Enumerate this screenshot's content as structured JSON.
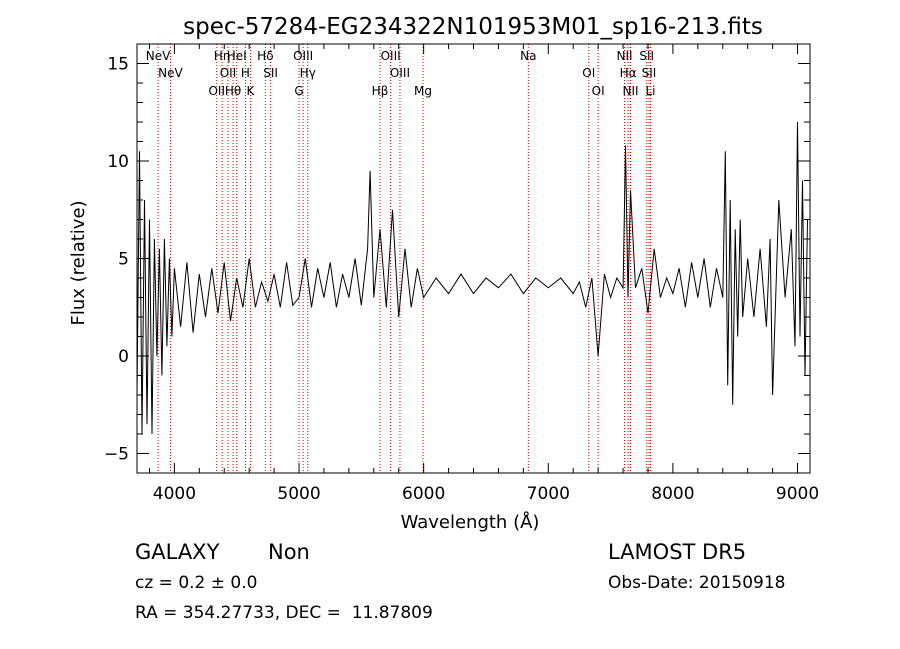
{
  "chart_data": {
    "type": "line",
    "title": "spec-57284-EG234322N101953M01_sp16-213.fits",
    "xlabel": "Wavelength (Å)",
    "ylabel": "Flux (relative)",
    "xlim": [
      3700,
      9100
    ],
    "ylim": [
      -6,
      16
    ],
    "x_ticks": [
      4000,
      5000,
      6000,
      7000,
      8000,
      9000
    ],
    "x_tick_labels": [
      "4000",
      "5000",
      "6000",
      "7000",
      "8000",
      "9000"
    ],
    "y_ticks": [
      -5,
      0,
      5,
      10,
      15
    ],
    "y_tick_labels": [
      "−5",
      "0",
      "5",
      "10",
      "15"
    ],
    "grid": false,
    "line_color": "#000000",
    "marker_color": "#cc0000",
    "series": [
      {
        "x": [
          3700,
          3720,
          3740,
          3760,
          3780,
          3800,
          3820,
          3840,
          3860,
          3880,
          3900,
          3920,
          3940,
          3960,
          3980,
          4000,
          4050,
          4100,
          4150,
          4200,
          4250,
          4300,
          4350,
          4400,
          4450,
          4500,
          4550,
          4600,
          4650,
          4700,
          4750,
          4800,
          4850,
          4900,
          4950,
          5000,
          5050,
          5100,
          5150,
          5200,
          5250,
          5300,
          5350,
          5400,
          5450,
          5500,
          5550,
          5570,
          5600,
          5650,
          5700,
          5750,
          5800,
          5850,
          5900,
          5950,
          6000,
          6100,
          6200,
          6300,
          6400,
          6500,
          6600,
          6700,
          6800,
          6900,
          7000,
          7100,
          7200,
          7250,
          7300,
          7350,
          7400,
          7450,
          7500,
          7550,
          7600,
          7620,
          7640,
          7660,
          7700,
          7750,
          7800,
          7850,
          7900,
          7950,
          8000,
          8050,
          8100,
          8150,
          8200,
          8250,
          8300,
          8350,
          8400,
          8420,
          8440,
          8460,
          8480,
          8500,
          8520,
          8540,
          8560,
          8600,
          8650,
          8700,
          8750,
          8780,
          8800,
          8850,
          8900,
          8950,
          8980,
          9000,
          9020,
          9040,
          9060,
          9080
        ],
        "y": [
          -2,
          10.5,
          -4,
          8,
          -3.5,
          7,
          -4,
          6,
          0,
          5.5,
          -1,
          6,
          0.5,
          5,
          1,
          4.5,
          1.5,
          4.8,
          1.2,
          4.2,
          2,
          4.5,
          2.2,
          4.8,
          1.8,
          4.0,
          2.5,
          5.0,
          2.5,
          3.8,
          2.8,
          4.2,
          2.5,
          4.8,
          2.6,
          3.0,
          5.0,
          2.5,
          4.5,
          3.0,
          4.8,
          2.5,
          4.2,
          3.0,
          5.0,
          2.6,
          5.5,
          9.5,
          3.0,
          6.5,
          2.5,
          7.5,
          2.0,
          5.5,
          2.5,
          4.5,
          3.0,
          4.0,
          3.2,
          4.2,
          3.2,
          4.0,
          3.5,
          4.2,
          3.2,
          4.0,
          3.5,
          4.0,
          3.2,
          3.8,
          2.5,
          4.0,
          0.0,
          4.2,
          3.0,
          4.0,
          3.5,
          10.8,
          3.0,
          8.5,
          3.5,
          4.5,
          2.2,
          5.5,
          3.0,
          4.0,
          3.2,
          4.5,
          2.5,
          4.8,
          3.0,
          5.0,
          2.5,
          4.5,
          3.0,
          10.5,
          -1.5,
          8.0,
          -2.5,
          6.5,
          1.0,
          7.0,
          2.0,
          5.0,
          2.0,
          5.5,
          1.5,
          6.0,
          -2.0,
          8.0,
          3.0,
          6.5,
          0.5,
          12.0,
          1.0,
          9.0,
          -1.0,
          7.0
        ]
      }
    ],
    "lines": [
      {
        "x": 3869,
        "labels": [
          "NeV"
        ]
      },
      {
        "x": 3968,
        "labels": [
          "NeV"
        ]
      },
      {
        "x": 4340,
        "labels": [
          "OII"
        ]
      },
      {
        "x": 4383,
        "labels": [
          "Hη"
        ]
      },
      {
        "x": 4430,
        "labels": [
          "OII"
        ]
      },
      {
        "x": 4471,
        "labels": [
          "Hθ"
        ]
      },
      {
        "x": 4500,
        "labels": [
          "HeI"
        ]
      },
      {
        "x": 4570,
        "labels": [
          "H"
        ]
      },
      {
        "x": 4610,
        "labels": [
          "K"
        ]
      },
      {
        "x": 4730,
        "labels": [
          "Hδ"
        ]
      },
      {
        "x": 4772,
        "labels": [
          "SII"
        ]
      },
      {
        "x": 5000,
        "labels": [
          "G"
        ]
      },
      {
        "x": 5033,
        "labels": [
          "OIII"
        ]
      },
      {
        "x": 5070,
        "labels": [
          "Hγ"
        ]
      },
      {
        "x": 5650,
        "labels": [
          "Hβ"
        ]
      },
      {
        "x": 5735,
        "labels": [
          "OIII"
        ]
      },
      {
        "x": 5810,
        "labels": [
          "OIII"
        ]
      },
      {
        "x": 5995,
        "labels": [
          "Mg"
        ]
      },
      {
        "x": 6840,
        "labels": [
          "Na"
        ]
      },
      {
        "x": 7325,
        "labels": [
          "OI"
        ]
      },
      {
        "x": 7400,
        "labels": [
          "OI"
        ]
      },
      {
        "x": 7612,
        "labels": [
          "NII"
        ]
      },
      {
        "x": 7640,
        "labels": [
          "Hα"
        ]
      },
      {
        "x": 7660,
        "labels": [
          "NII"
        ]
      },
      {
        "x": 7790,
        "labels": [
          "SII"
        ]
      },
      {
        "x": 7808,
        "labels": [
          "SII"
        ]
      },
      {
        "x": 7820,
        "labels": [
          "Li"
        ]
      }
    ]
  },
  "info": {
    "class": "GALAXY",
    "subclass": "Non",
    "cz": "cz = 0.2 ± 0.0",
    "coords": "RA = 354.27733, DEC =  11.87809",
    "survey": "LAMOST DR5",
    "obsdate": "Obs-Date: 20150918"
  }
}
